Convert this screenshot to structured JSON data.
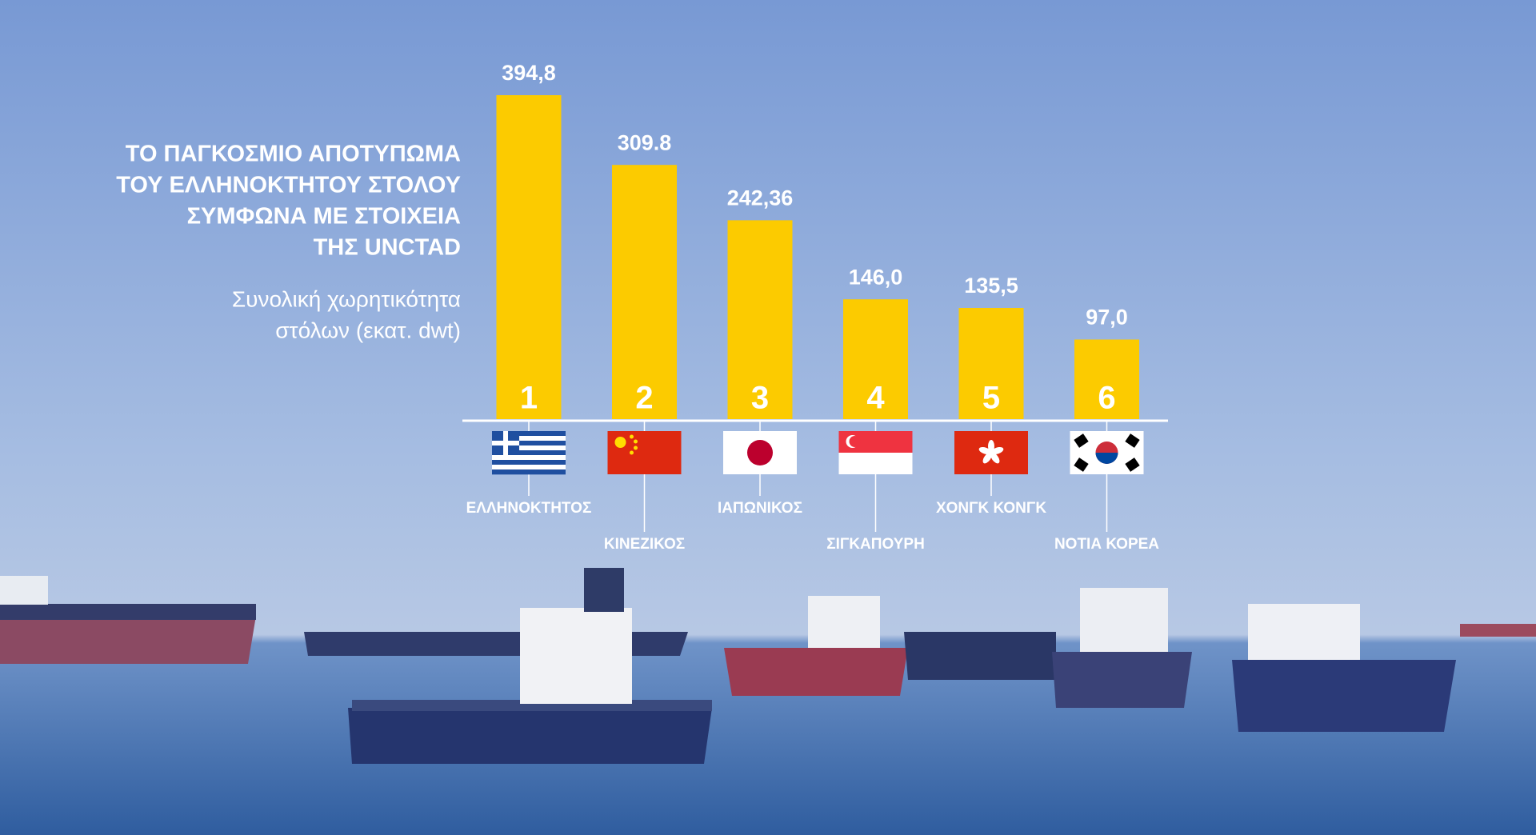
{
  "chart_data": {
    "type": "bar",
    "title": [
      "ΤΟ ΠΑΓΚΟΣΜΙΟ ΑΠΟΤΥΠΩΜΑ",
      "ΤΟΥ ΕΛΛΗΝΟΚΤΗΤΟΥ ΣΤΟΛΟΥ",
      "ΣΥΜΦΩΝΑ ΜΕ ΣΤΟΙΧΕΙΑ",
      "ΤΗΣ UNCTAD"
    ],
    "subtitle": [
      "Συνολική χωρητικότητα",
      "στόλων (εκατ. dwt)"
    ],
    "categories": [
      "ΕΛΛΗΝΟΚΤΗΤΟΣ",
      "ΚΙΝΕΖΙΚΟΣ",
      "ΙΑΠΩΝΙΚΟΣ",
      "ΣΙΓΚΑΠΟΥΡΗ",
      "ΧΟΝΓΚ ΚΟΝΓΚ",
      "ΝΟΤΙΑ ΚΟΡΕΑ"
    ],
    "ranks": [
      1,
      2,
      3,
      4,
      5,
      6
    ],
    "values": [
      394.8,
      309.8,
      242.36,
      146.0,
      135.5,
      97.0
    ],
    "value_labels": [
      "394,8",
      "309.8",
      "242,36",
      "146,0",
      "135,5",
      "97,0"
    ],
    "color": "#fccb00"
  }
}
